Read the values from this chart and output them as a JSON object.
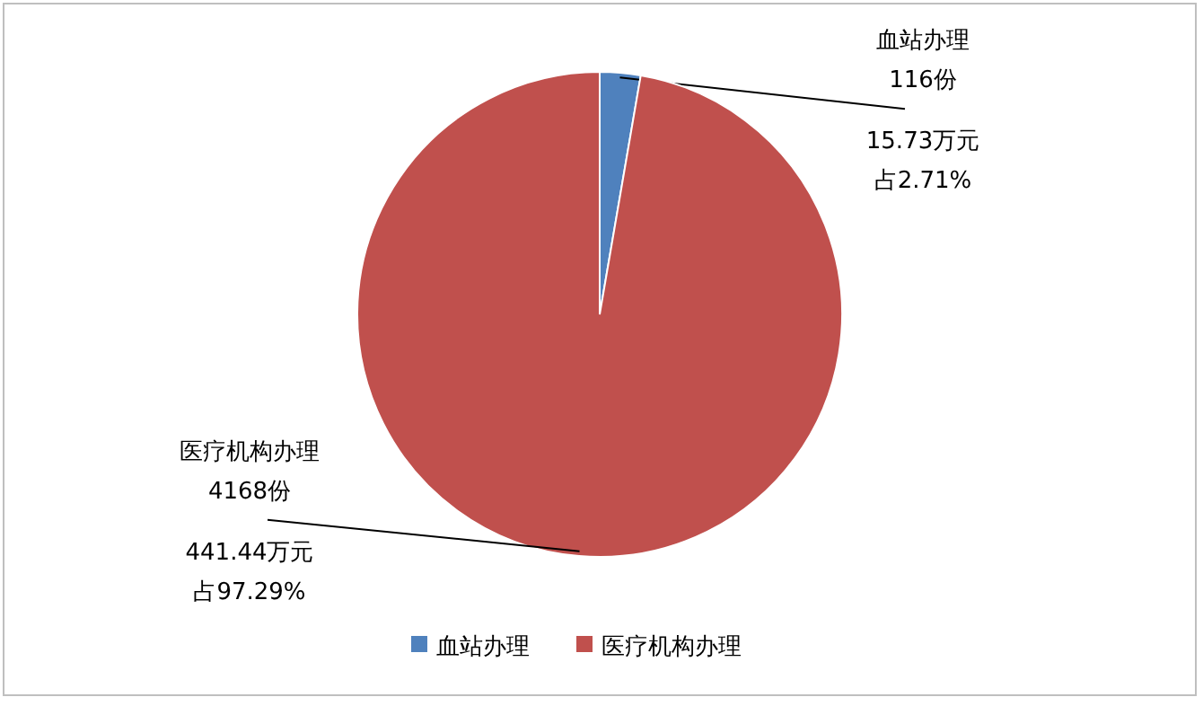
{
  "chart_data": {
    "type": "pie",
    "categories": [
      "血站办理",
      "医疗机构办理"
    ],
    "values": [
      2.71,
      97.29
    ],
    "colors": [
      "#4f81bd",
      "#c0504d"
    ],
    "value_labels": [
      [
        "116份",
        "15.73万元",
        "占2.71%"
      ],
      [
        "4168份",
        "441.44万元",
        "占97.29%"
      ]
    ],
    "legend": "bottom"
  }
}
